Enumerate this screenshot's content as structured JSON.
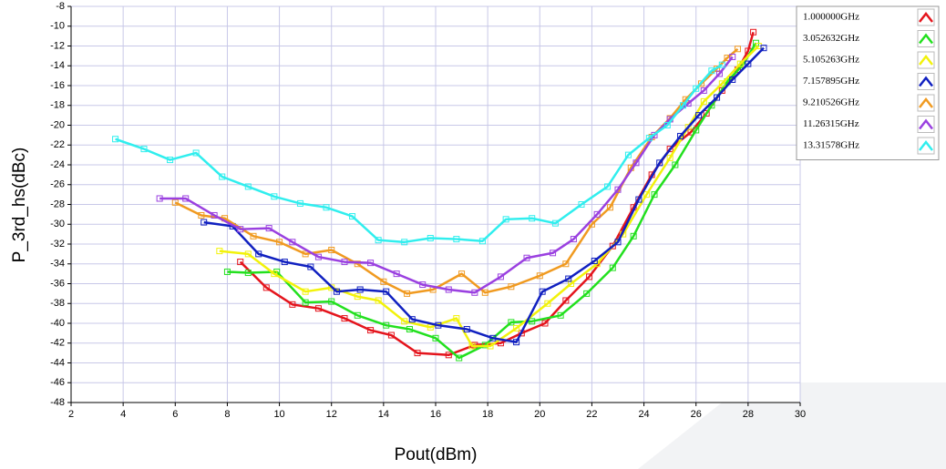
{
  "chart_data": {
    "type": "line",
    "xlabel": "Pout(dBm)",
    "ylabel": "P_3rd_hs(dBc)",
    "xlim": [
      2,
      30
    ],
    "xticks": [
      2,
      4,
      6,
      8,
      10,
      12,
      14,
      16,
      18,
      20,
      22,
      24,
      26,
      28,
      30
    ],
    "ylim": [
      -48,
      -8
    ],
    "yticks": [
      -8,
      -10,
      -12,
      -14,
      -16,
      -18,
      -20,
      -22,
      -24,
      -26,
      -28,
      -30,
      -32,
      -34,
      -36,
      -38,
      -40,
      -42,
      -44,
      -46,
      -48
    ],
    "grid": true,
    "legend": "upper right",
    "series": [
      {
        "name": "1.000000GHz",
        "color": "#e4141c",
        "x": [
          8.5,
          9.5,
          10.5,
          11.5,
          12.5,
          13.5,
          14.3,
          15.3,
          16.5,
          17.5,
          18.5,
          19.3,
          20.2,
          21,
          21.9,
          22.8,
          23.6,
          24.3,
          25,
          25.8,
          26.4,
          27,
          27.6,
          28,
          28.2
        ],
        "values": [
          -33.8,
          -36.4,
          -38.1,
          -38.5,
          -39.5,
          -40.7,
          -41.2,
          -43,
          -43.2,
          -42.2,
          -42,
          -41,
          -40,
          -37.7,
          -35.3,
          -32.2,
          -28.3,
          -25,
          -22.4,
          -20.7,
          -18.8,
          -16.5,
          -14.4,
          -12.5,
          -10.6
        ]
      },
      {
        "name": "3.052632GHz",
        "color": "#22e01e",
        "x": [
          8,
          8.8,
          9.9,
          11,
          12,
          13,
          14.1,
          15,
          16,
          16.9,
          17.9,
          18.9,
          19.7,
          20.8,
          21.8,
          22.8,
          23.6,
          24.4,
          25.2,
          26,
          26.6,
          27.2,
          27.8,
          28.3
        ],
        "values": [
          -34.8,
          -34.9,
          -34.8,
          -37.9,
          -37.8,
          -39.2,
          -40.2,
          -40.6,
          -41.5,
          -43.5,
          -42.2,
          -39.9,
          -39.8,
          -39.2,
          -37,
          -34.4,
          -31.2,
          -27,
          -24,
          -20.5,
          -18,
          -15.6,
          -13.9,
          -11.7
        ]
      },
      {
        "name": "5.105263GHz",
        "color": "#f2f20a",
        "x": [
          7.7,
          8.8,
          9.8,
          11,
          12,
          13,
          13.8,
          14.8,
          15.8,
          16.8,
          17.4,
          18.1,
          19.1,
          20.3,
          21.2,
          22.2,
          23.2,
          24.1,
          25,
          25.7,
          26.3,
          27,
          27.7,
          28.4
        ],
        "values": [
          -32.7,
          -33,
          -35,
          -36.8,
          -36.4,
          -37.3,
          -37.7,
          -39.8,
          -40.4,
          -39.5,
          -42.3,
          -42.3,
          -40.5,
          -38,
          -36,
          -34,
          -31,
          -27,
          -23.3,
          -20.2,
          -17.6,
          -15.8,
          -13.8,
          -12
        ]
      },
      {
        "name": "7.157895GHz",
        "color": "#1020c0",
        "x": [
          7.1,
          8.2,
          9.2,
          10.2,
          11.2,
          12.2,
          13.1,
          14.1,
          15.1,
          16.1,
          17.2,
          18.2,
          19.1,
          20.1,
          21.1,
          22.1,
          23,
          23.8,
          24.6,
          25.4,
          26.1,
          26.8,
          27.4,
          28,
          28.6
        ],
        "values": [
          -29.8,
          -30.2,
          -33,
          -33.8,
          -34.3,
          -36.8,
          -36.6,
          -36.8,
          -39.6,
          -40.2,
          -40.6,
          -41.5,
          -41.9,
          -36.8,
          -35.5,
          -33.7,
          -31.8,
          -27.5,
          -23.8,
          -21.1,
          -19,
          -17.2,
          -15.4,
          -13.8,
          -12.2
        ]
      },
      {
        "name": "9.210526GHz",
        "color": "#f09a20",
        "x": [
          6,
          7,
          7.9,
          9,
          10,
          11,
          12,
          13,
          14,
          14.9,
          15.9,
          17,
          17.9,
          18.9,
          20,
          21,
          22,
          22.7,
          23.5,
          24.3,
          25,
          25.6,
          26.2,
          26.8,
          27.2,
          27.6
        ],
        "values": [
          -27.8,
          -29.1,
          -29.4,
          -31.2,
          -31.8,
          -33,
          -32.6,
          -34,
          -35.8,
          -37,
          -36.6,
          -35,
          -36.9,
          -36.3,
          -35.2,
          -34,
          -30,
          -28.3,
          -24.3,
          -21.2,
          -19.3,
          -17.4,
          -15.8,
          -14.3,
          -13.2,
          -12.3
        ]
      },
      {
        "name": "11.26315GHz",
        "color": "#9a40e0",
        "x": [
          5.4,
          6.4,
          7.5,
          8.5,
          9.6,
          10.5,
          11.5,
          12.5,
          13.5,
          14.5,
          15.5,
          16.5,
          17.5,
          18.5,
          19.5,
          20.5,
          21.3,
          22.2,
          23,
          23.7,
          24.4,
          25,
          25.7,
          26.3,
          26.9,
          27.4
        ],
        "values": [
          -27.4,
          -27.4,
          -29.1,
          -30.5,
          -30.4,
          -31.8,
          -33.3,
          -33.8,
          -33.9,
          -35,
          -36.1,
          -36.6,
          -36.9,
          -35.3,
          -33.4,
          -32.9,
          -31.5,
          -29,
          -26.5,
          -23.8,
          -21,
          -19.4,
          -17.8,
          -16.5,
          -14.8,
          -13.1
        ]
      },
      {
        "name": "13.31578GHz",
        "color": "#30eeee",
        "x": [
          3.7,
          4.8,
          5.8,
          6.8,
          7.8,
          8.8,
          9.8,
          10.8,
          11.8,
          12.8,
          13.8,
          14.8,
          15.8,
          16.8,
          17.8,
          18.7,
          19.7,
          20.6,
          21.6,
          22.6,
          23.4,
          24.2,
          24.9,
          25.5,
          26,
          26.6,
          27
        ],
        "values": [
          -21.4,
          -22.4,
          -23.5,
          -22.8,
          -25.2,
          -26.2,
          -27.2,
          -27.9,
          -28.3,
          -29.2,
          -31.6,
          -31.8,
          -31.4,
          -31.5,
          -31.7,
          -29.5,
          -29.4,
          -29.9,
          -28,
          -26.2,
          -23,
          -21.3,
          -20,
          -18,
          -16.3,
          -14.5,
          -13.9
        ]
      }
    ]
  }
}
